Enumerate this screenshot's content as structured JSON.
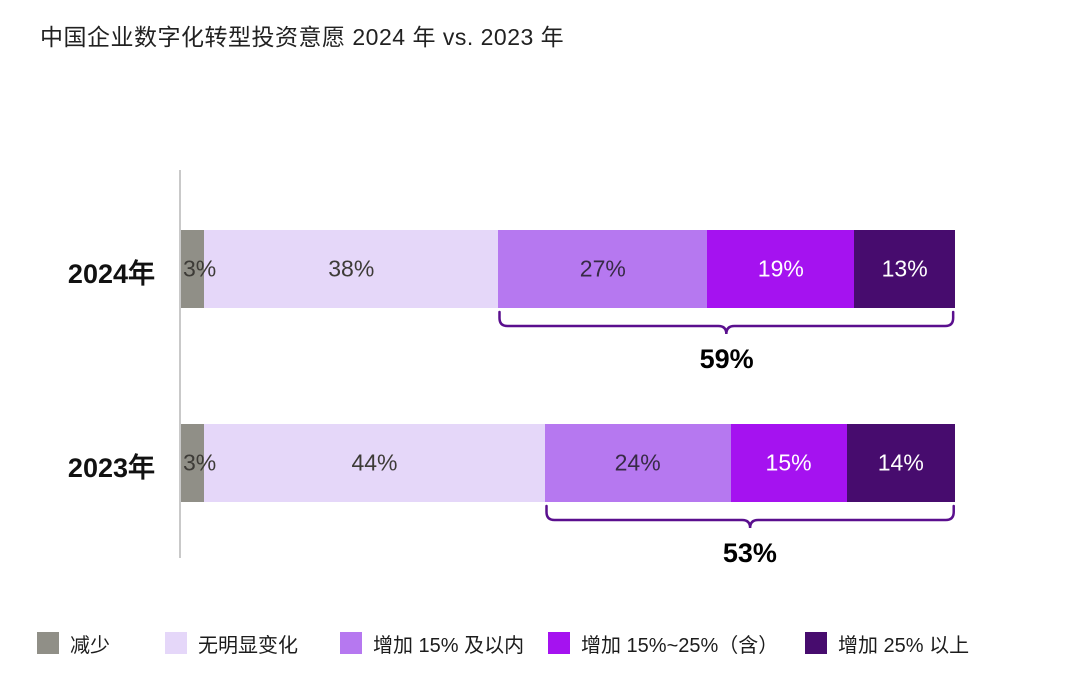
{
  "chart_data": {
    "type": "bar",
    "stacked": true,
    "orientation": "horizontal",
    "title": "中国企业数字化转型投资意愿 2024 年 vs. 2023 年",
    "categories": [
      "2024年",
      "2023年"
    ],
    "series": [
      {
        "name": "减少",
        "color": "#908f87",
        "label_color": "#3d3b37",
        "values": [
          3,
          3
        ]
      },
      {
        "name": "无明显变化",
        "color": "#e5d7f9",
        "label_color": "#3d3b37",
        "values": [
          38,
          44
        ]
      },
      {
        "name": "增加 15% 及以内",
        "color": "#b678f0",
        "label_color": "#372a45",
        "values": [
          27,
          24
        ]
      },
      {
        "name": "增加 15%~25%（含）",
        "color": "#a512f0",
        "label_color": "#ffffff",
        "values": [
          19,
          15
        ]
      },
      {
        "name": "增加 25% 以上",
        "color": "#470c6e",
        "label_color": "#ffffff",
        "values": [
          13,
          14
        ]
      }
    ],
    "value_suffix": "%",
    "annotations": [
      {
        "category": "2024年",
        "label": "59%",
        "from_series": 2,
        "to_series": 4
      },
      {
        "category": "2023年",
        "label": "53%",
        "from_series": 2,
        "to_series": 4
      }
    ],
    "xlim": [
      0,
      100
    ],
    "grid": false,
    "legend_position": "bottom",
    "axis_color": "#c9c9c9",
    "brace_color": "#5a0f8e"
  }
}
